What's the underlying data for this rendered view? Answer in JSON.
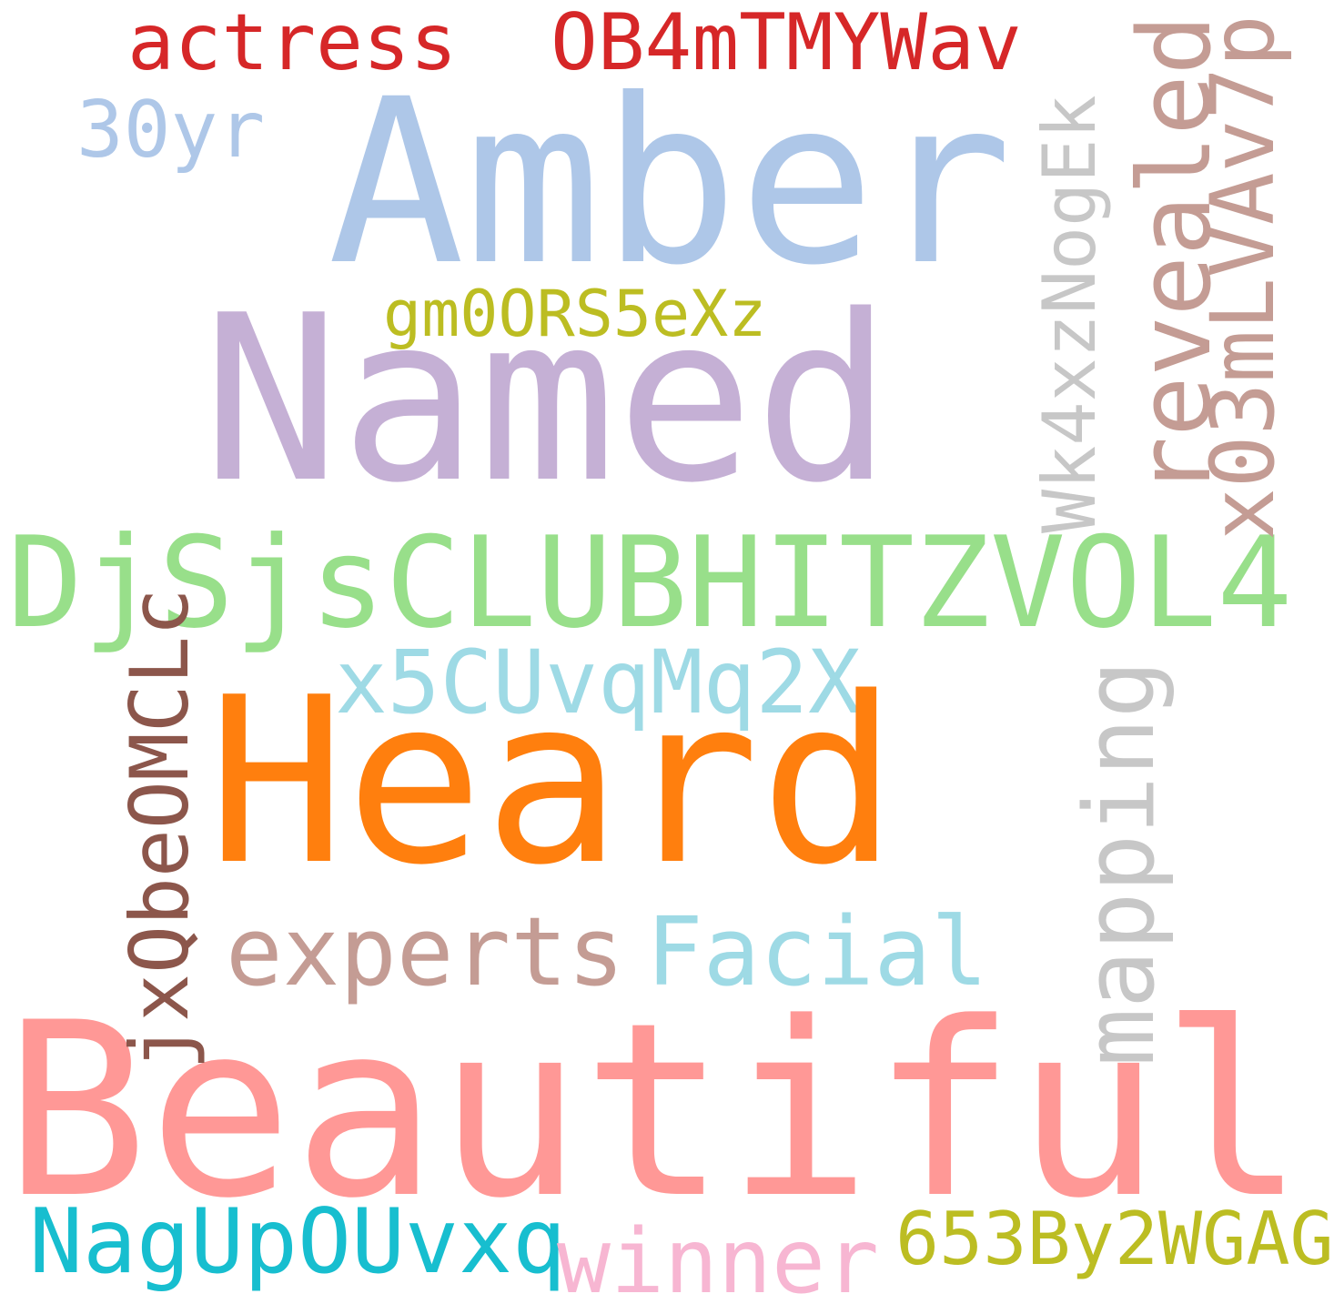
{
  "words": {
    "actress": {
      "text": "actress",
      "color": "#d62728"
    },
    "ob4m": {
      "text": "OB4mTMYWav",
      "color": "#d62728"
    },
    "thirtyyr": {
      "text": "30yr",
      "color": "#aec7e8"
    },
    "amber": {
      "text": "Amber",
      "color": "#aec7e8"
    },
    "revealed": {
      "text": "revealed",
      "color": "#c49c94"
    },
    "x03m": {
      "text": "x03mLVAv7p",
      "color": "#c49c94"
    },
    "wk4x": {
      "text": "Wk4xzNogEk",
      "color": "#c7c7c7"
    },
    "gm00": {
      "text": "gm0ORS5eXz",
      "color": "#bcbd22"
    },
    "named": {
      "text": "Named",
      "color": "#c5b0d5"
    },
    "djsjs": {
      "text": "DjSjsCLUBHITZVOL4",
      "color": "#98df8a"
    },
    "x5cu": {
      "text": "x5CUvqMq2X",
      "color": "#9edae5"
    },
    "jxqbe": {
      "text": "jxQbeOMCLc",
      "color": "#8c564b"
    },
    "mapping": {
      "text": "mapping",
      "color": "#c7c7c7"
    },
    "heard": {
      "text": "Heard",
      "color": "#ff7f0e"
    },
    "experts": {
      "text": "experts",
      "color": "#c49c94"
    },
    "facial": {
      "text": "Facial",
      "color": "#9edae5"
    },
    "beautiful": {
      "text": "Beautiful",
      "color": "#ff9896"
    },
    "nagup": {
      "text": "NagUpOUvxq",
      "color": "#17becf"
    },
    "winner": {
      "text": "winner",
      "color": "#f7b6d2"
    },
    "b653": {
      "text": "653By2WGAG",
      "color": "#bcbd22"
    }
  }
}
